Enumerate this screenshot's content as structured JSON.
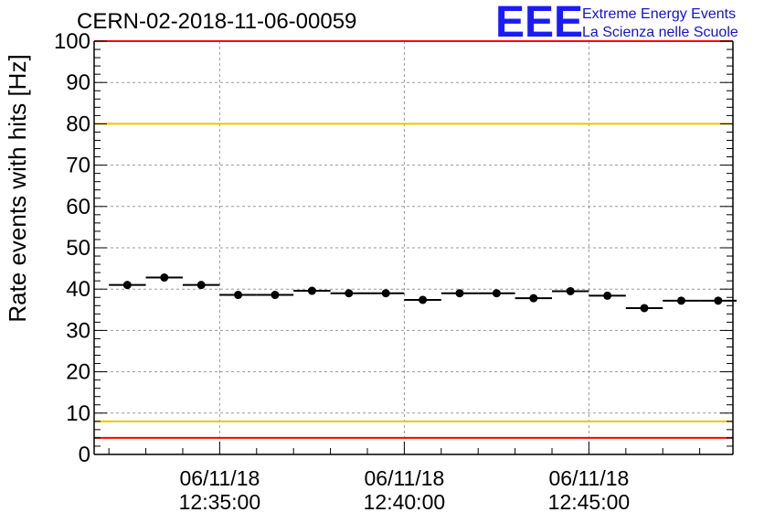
{
  "chart_data": {
    "type": "scatter",
    "title": "CERN-02-2018-11-06-00059",
    "xlabel": "",
    "ylabel": "Rate events with hits [Hz]",
    "ylim": [
      0,
      100
    ],
    "yticks": [
      "0",
      "10",
      "20",
      "30",
      "40",
      "50",
      "60",
      "70",
      "80",
      "90",
      "100"
    ],
    "x_range_minutes": [
      12.53,
      12.82
    ],
    "xticks": [
      {
        "date": "06/11/18",
        "time": "12:35:00"
      },
      {
        "date": "06/11/18",
        "time": "12:40:00"
      },
      {
        "date": "06/11/18",
        "time": "12:45:00"
      }
    ],
    "grid": true,
    "thresholds": [
      {
        "value": 100,
        "color": "#ff0000"
      },
      {
        "value": 80,
        "color": "#e8c800"
      },
      {
        "value": 8,
        "color": "#e8c800"
      },
      {
        "value": 4,
        "color": "#ff0000"
      }
    ],
    "bin_width_min": 1,
    "points": [
      {
        "time": "12:32:30",
        "value": 41.0
      },
      {
        "time": "12:33:30",
        "value": 42.8
      },
      {
        "time": "12:34:30",
        "value": 41.0
      },
      {
        "time": "12:35:30",
        "value": 38.6
      },
      {
        "time": "12:36:30",
        "value": 38.6
      },
      {
        "time": "12:37:30",
        "value": 39.6
      },
      {
        "time": "12:38:30",
        "value": 39.0
      },
      {
        "time": "12:39:30",
        "value": 39.0
      },
      {
        "time": "12:40:30",
        "value": 37.4
      },
      {
        "time": "12:41:30",
        "value": 39.0
      },
      {
        "time": "12:42:30",
        "value": 39.0
      },
      {
        "time": "12:43:30",
        "value": 37.8
      },
      {
        "time": "12:44:30",
        "value": 39.5
      },
      {
        "time": "12:45:30",
        "value": 38.4
      },
      {
        "time": "12:46:30",
        "value": 35.4
      },
      {
        "time": "12:47:30",
        "value": 37.2
      },
      {
        "time": "12:48:30",
        "value": 37.2
      }
    ],
    "point_color": "#000000"
  },
  "logo": {
    "text": "EEE",
    "line1": "Extreme Energy Events",
    "line2": "La Scienza nelle Scuole",
    "color": "#1a1aff"
  }
}
